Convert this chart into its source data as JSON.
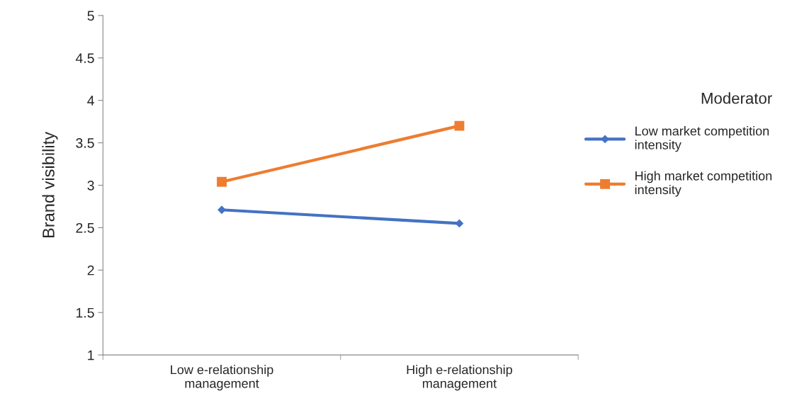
{
  "chart_data": {
    "type": "line",
    "ylabel": "Brand visibility",
    "categories": [
      "Low e-relationship\nmanagement",
      "High e-relationship\nmanagement"
    ],
    "series": [
      {
        "name": "Low market competition\nintensity",
        "color": "#4472c4",
        "values": [
          2.71,
          2.55
        ],
        "marker": "diamond"
      },
      {
        "name": "High market competition\nintensity",
        "color": "#ed7d31",
        "values": [
          3.04,
          3.7
        ],
        "marker": "square"
      }
    ],
    "ylim": [
      1,
      5
    ],
    "yticks": [
      1,
      1.5,
      2,
      2.5,
      3,
      3.5,
      4,
      4.5,
      5
    ],
    "legend": "right",
    "legend_title": "Moderator",
    "grid": false,
    "line_style": "solid"
  }
}
